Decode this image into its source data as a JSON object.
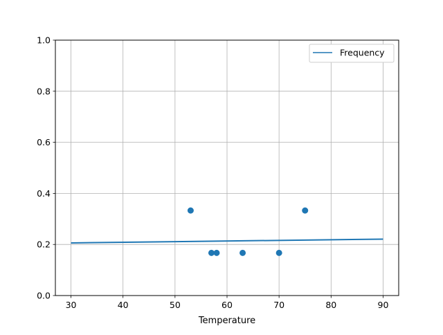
{
  "chart_data": {
    "type": "scatter",
    "title": "",
    "xlabel": "Temperature",
    "ylabel": "",
    "xlim": [
      27,
      93
    ],
    "ylim": [
      0,
      1.0
    ],
    "grid": true,
    "legend_position": "top-right",
    "x_ticks": [
      30,
      40,
      50,
      60,
      70,
      80,
      90
    ],
    "x_tick_labels": [
      "30",
      "40",
      "50",
      "60",
      "70",
      "80",
      "90"
    ],
    "y_ticks": [
      0,
      0.2,
      0.4,
      0.6,
      0.8,
      1.0
    ],
    "y_tick_labels": [
      "0.0",
      "0.2",
      "0.4",
      "0.6",
      "0.8",
      "1.0"
    ],
    "series": [
      {
        "name": "Frequency",
        "kind": "line",
        "color": "#1f77b4",
        "x": [
          30,
          90
        ],
        "y": [
          0.206,
          0.221
        ]
      },
      {
        "kind": "scatter",
        "color": "#1f77b4",
        "x": [
          53,
          57,
          58,
          63,
          70,
          75
        ],
        "y": [
          0.333,
          0.167,
          0.167,
          0.167,
          0.167,
          0.333
        ]
      }
    ]
  }
}
